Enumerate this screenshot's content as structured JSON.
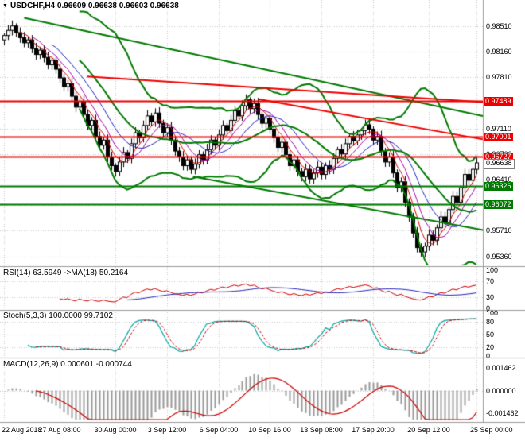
{
  "style": {
    "background": "#ffffff",
    "grid_color": "#c8c8c8",
    "separator_color": "#9a9a9a",
    "candle_up_fill": "#ffffff",
    "candle_down_fill": "#000000",
    "candle_outline": "#000000",
    "resistance_color": "#ee0000",
    "support_color": "#007a00"
  },
  "chart_data": [
    {
      "type": "candlestick",
      "panel": "price",
      "symbol": "USDCHF",
      "timeframe": "H4",
      "title_text": "USDCHF,H4 0.96609 0.96638 0.96603 0.96638",
      "quote": {
        "open": "0.96609",
        "high": "0.96638",
        "low": "0.96603",
        "close": "0.96638"
      },
      "ylim": [
        0.9528,
        0.988
      ],
      "y_ticks": [
        0.9851,
        0.9816,
        0.9781,
        0.9746,
        0.9711,
        0.9676,
        0.9641,
        0.9606,
        0.9571,
        0.9536
      ],
      "y_tick_labels": [
        "0.98510",
        "0.98160",
        "0.97810",
        "0.97460",
        "0.97110",
        "0.96760",
        "0.96410",
        "0.96060",
        "0.95710",
        "0.95360"
      ],
      "x_tick_labels": [
        "22 Aug 2018",
        "27 Aug 08:00",
        "30 Aug 00:00",
        "3 Sep 12:00",
        "6 Sep 04:00",
        "10 Sep 16:00",
        "13 Sep 08:00",
        "17 Sep 20:00",
        "20 Sep 12:00",
        "25 Sep 00:00"
      ],
      "x_tick_pos": [
        0,
        14,
        28,
        41,
        54,
        67,
        80,
        93,
        107,
        119
      ],
      "first_open": 0.9832,
      "closes": [
        0.9838,
        0.9845,
        0.9851,
        0.9842,
        0.9835,
        0.9828,
        0.9832,
        0.982,
        0.9812,
        0.9818,
        0.9808,
        0.9798,
        0.9804,
        0.9792,
        0.978,
        0.9768,
        0.9772,
        0.9755,
        0.974,
        0.9748,
        0.973,
        0.9715,
        0.9722,
        0.97,
        0.9688,
        0.9695,
        0.9672,
        0.966,
        0.9652,
        0.9665,
        0.9678,
        0.967,
        0.969,
        0.9705,
        0.9698,
        0.9715,
        0.9728,
        0.972,
        0.9732,
        0.9718,
        0.9705,
        0.9712,
        0.9695,
        0.968,
        0.9672,
        0.966,
        0.9668,
        0.9655,
        0.9662,
        0.9675,
        0.9668,
        0.9682,
        0.9695,
        0.9688,
        0.9702,
        0.9715,
        0.9708,
        0.9722,
        0.9735,
        0.9728,
        0.9742,
        0.975,
        0.9738,
        0.9745,
        0.973,
        0.9718,
        0.9725,
        0.971,
        0.9698,
        0.9685,
        0.9692,
        0.9675,
        0.966,
        0.9668,
        0.9652,
        0.9645,
        0.9655,
        0.9642,
        0.965,
        0.9658,
        0.9648,
        0.966,
        0.9655,
        0.967,
        0.9682,
        0.9676,
        0.969,
        0.97,
        0.9694,
        0.9702,
        0.9708,
        0.9716,
        0.971,
        0.9695,
        0.97,
        0.968,
        0.9665,
        0.9672,
        0.965,
        0.963,
        0.9638,
        0.961,
        0.959,
        0.9568,
        0.9548,
        0.9542,
        0.955,
        0.9565,
        0.9558,
        0.9575,
        0.959,
        0.9582,
        0.96,
        0.9618,
        0.961,
        0.963,
        0.9648,
        0.964,
        0.9655,
        0.96638
      ],
      "bollinger": {
        "period": 20,
        "deviation": 2,
        "color": "#007a00",
        "width": 2
      },
      "moving_averages": [
        {
          "period": 5,
          "color": "#dd0000"
        },
        {
          "period": 8,
          "color": "#aa00aa"
        },
        {
          "period": 13,
          "color": "#2222bb"
        }
      ],
      "h_lines": [
        {
          "price": 0.97489,
          "color": "#ee0000",
          "width": 2
        },
        {
          "price": 0.97001,
          "color": "#ee0000",
          "width": 2
        },
        {
          "price": 0.96727,
          "color": "#ee0000",
          "width": 2
        },
        {
          "price": 0.96326,
          "color": "#007a00",
          "width": 2
        },
        {
          "price": 0.96072,
          "color": "#007a00",
          "width": 2
        }
      ],
      "trend_lines": [
        {
          "x1": 0.05,
          "p1": 0.9862,
          "x2": 1.0,
          "p2": 0.9728,
          "color": "#007a00",
          "width": 2
        },
        {
          "x1": 0.4,
          "p1": 0.9645,
          "x2": 1.0,
          "p2": 0.9572,
          "color": "#007a00",
          "width": 2
        },
        {
          "x1": 0.18,
          "p1": 0.9782,
          "x2": 1.0,
          "p2": 0.9747,
          "color": "#ee0000",
          "width": 2
        },
        {
          "x1": 0.535,
          "p1": 0.9751,
          "x2": 1.0,
          "p2": 0.9696,
          "color": "#ee0000",
          "width": 2
        }
      ],
      "price_tags": [
        {
          "text": "0.97489",
          "price": 0.97489,
          "bg": "#ee0000",
          "fg": "#ffffff"
        },
        {
          "text": "0.97001",
          "price": 0.97001,
          "bg": "#ee0000",
          "fg": "#ffffff"
        },
        {
          "text": "0.96727",
          "price": 0.96727,
          "bg": "#ee0000",
          "fg": "#ffffff"
        },
        {
          "text": "0.96638",
          "price": 0.96638,
          "bg": "#ffffff",
          "fg": "#000000",
          "border": "#808080"
        },
        {
          "text": "0.96326",
          "price": 0.96326,
          "bg": "#007a00",
          "fg": "#ffffff"
        },
        {
          "text": "0.96072",
          "price": 0.96072,
          "bg": "#007a00",
          "fg": "#ffffff"
        }
      ]
    },
    {
      "type": "line",
      "panel": "oscillator",
      "name": "RSI",
      "title_text": "RSI(14) 63.5949 ->MA(18) 50.2164",
      "period": 14,
      "ma_period": 18,
      "current_value": "63.5949",
      "current_ma": "50.2164",
      "ylim": [
        0,
        100
      ],
      "y_ticks": [
        100,
        70,
        30,
        0
      ],
      "y_tick_labels": [
        "100",
        "70",
        "30",
        "0"
      ],
      "levels": [
        70,
        30
      ],
      "line_color": "#cc0000",
      "ma_color": "#2222bb"
    },
    {
      "type": "line",
      "panel": "oscillator",
      "name": "Stochastic",
      "title_text": "Stoch(5,3,3) 100.0000 99.7102",
      "k_period": 5,
      "d_period": 3,
      "slowing": 3,
      "current_main": "100.0000",
      "current_signal": "99.7102",
      "ylim": [
        0,
        100
      ],
      "y_ticks": [
        100,
        80,
        50,
        20,
        0
      ],
      "y_tick_labels": [
        "100",
        "80",
        "50",
        "20",
        "0"
      ],
      "levels": [
        80,
        50,
        20
      ],
      "main_color": "#00a6a6",
      "signal_color": "#cc0000"
    },
    {
      "type": "bar",
      "panel": "oscillator",
      "name": "MACD",
      "title_text": "MACD(12,26,9) 0.000601 -0.000744",
      "fast": 12,
      "slow": 26,
      "signal_period": 9,
      "current_macd": "0.000601",
      "current_signal": "-0.000744",
      "ylim": [
        -0.0019,
        0.0019
      ],
      "y_ticks": [
        0.001462,
        0,
        -0.001462
      ],
      "y_tick_labels": [
        "0.001462",
        "0.000000",
        "-0.001462"
      ],
      "histogram_color": "#999999",
      "signal_color": "#cc0000"
    }
  ]
}
